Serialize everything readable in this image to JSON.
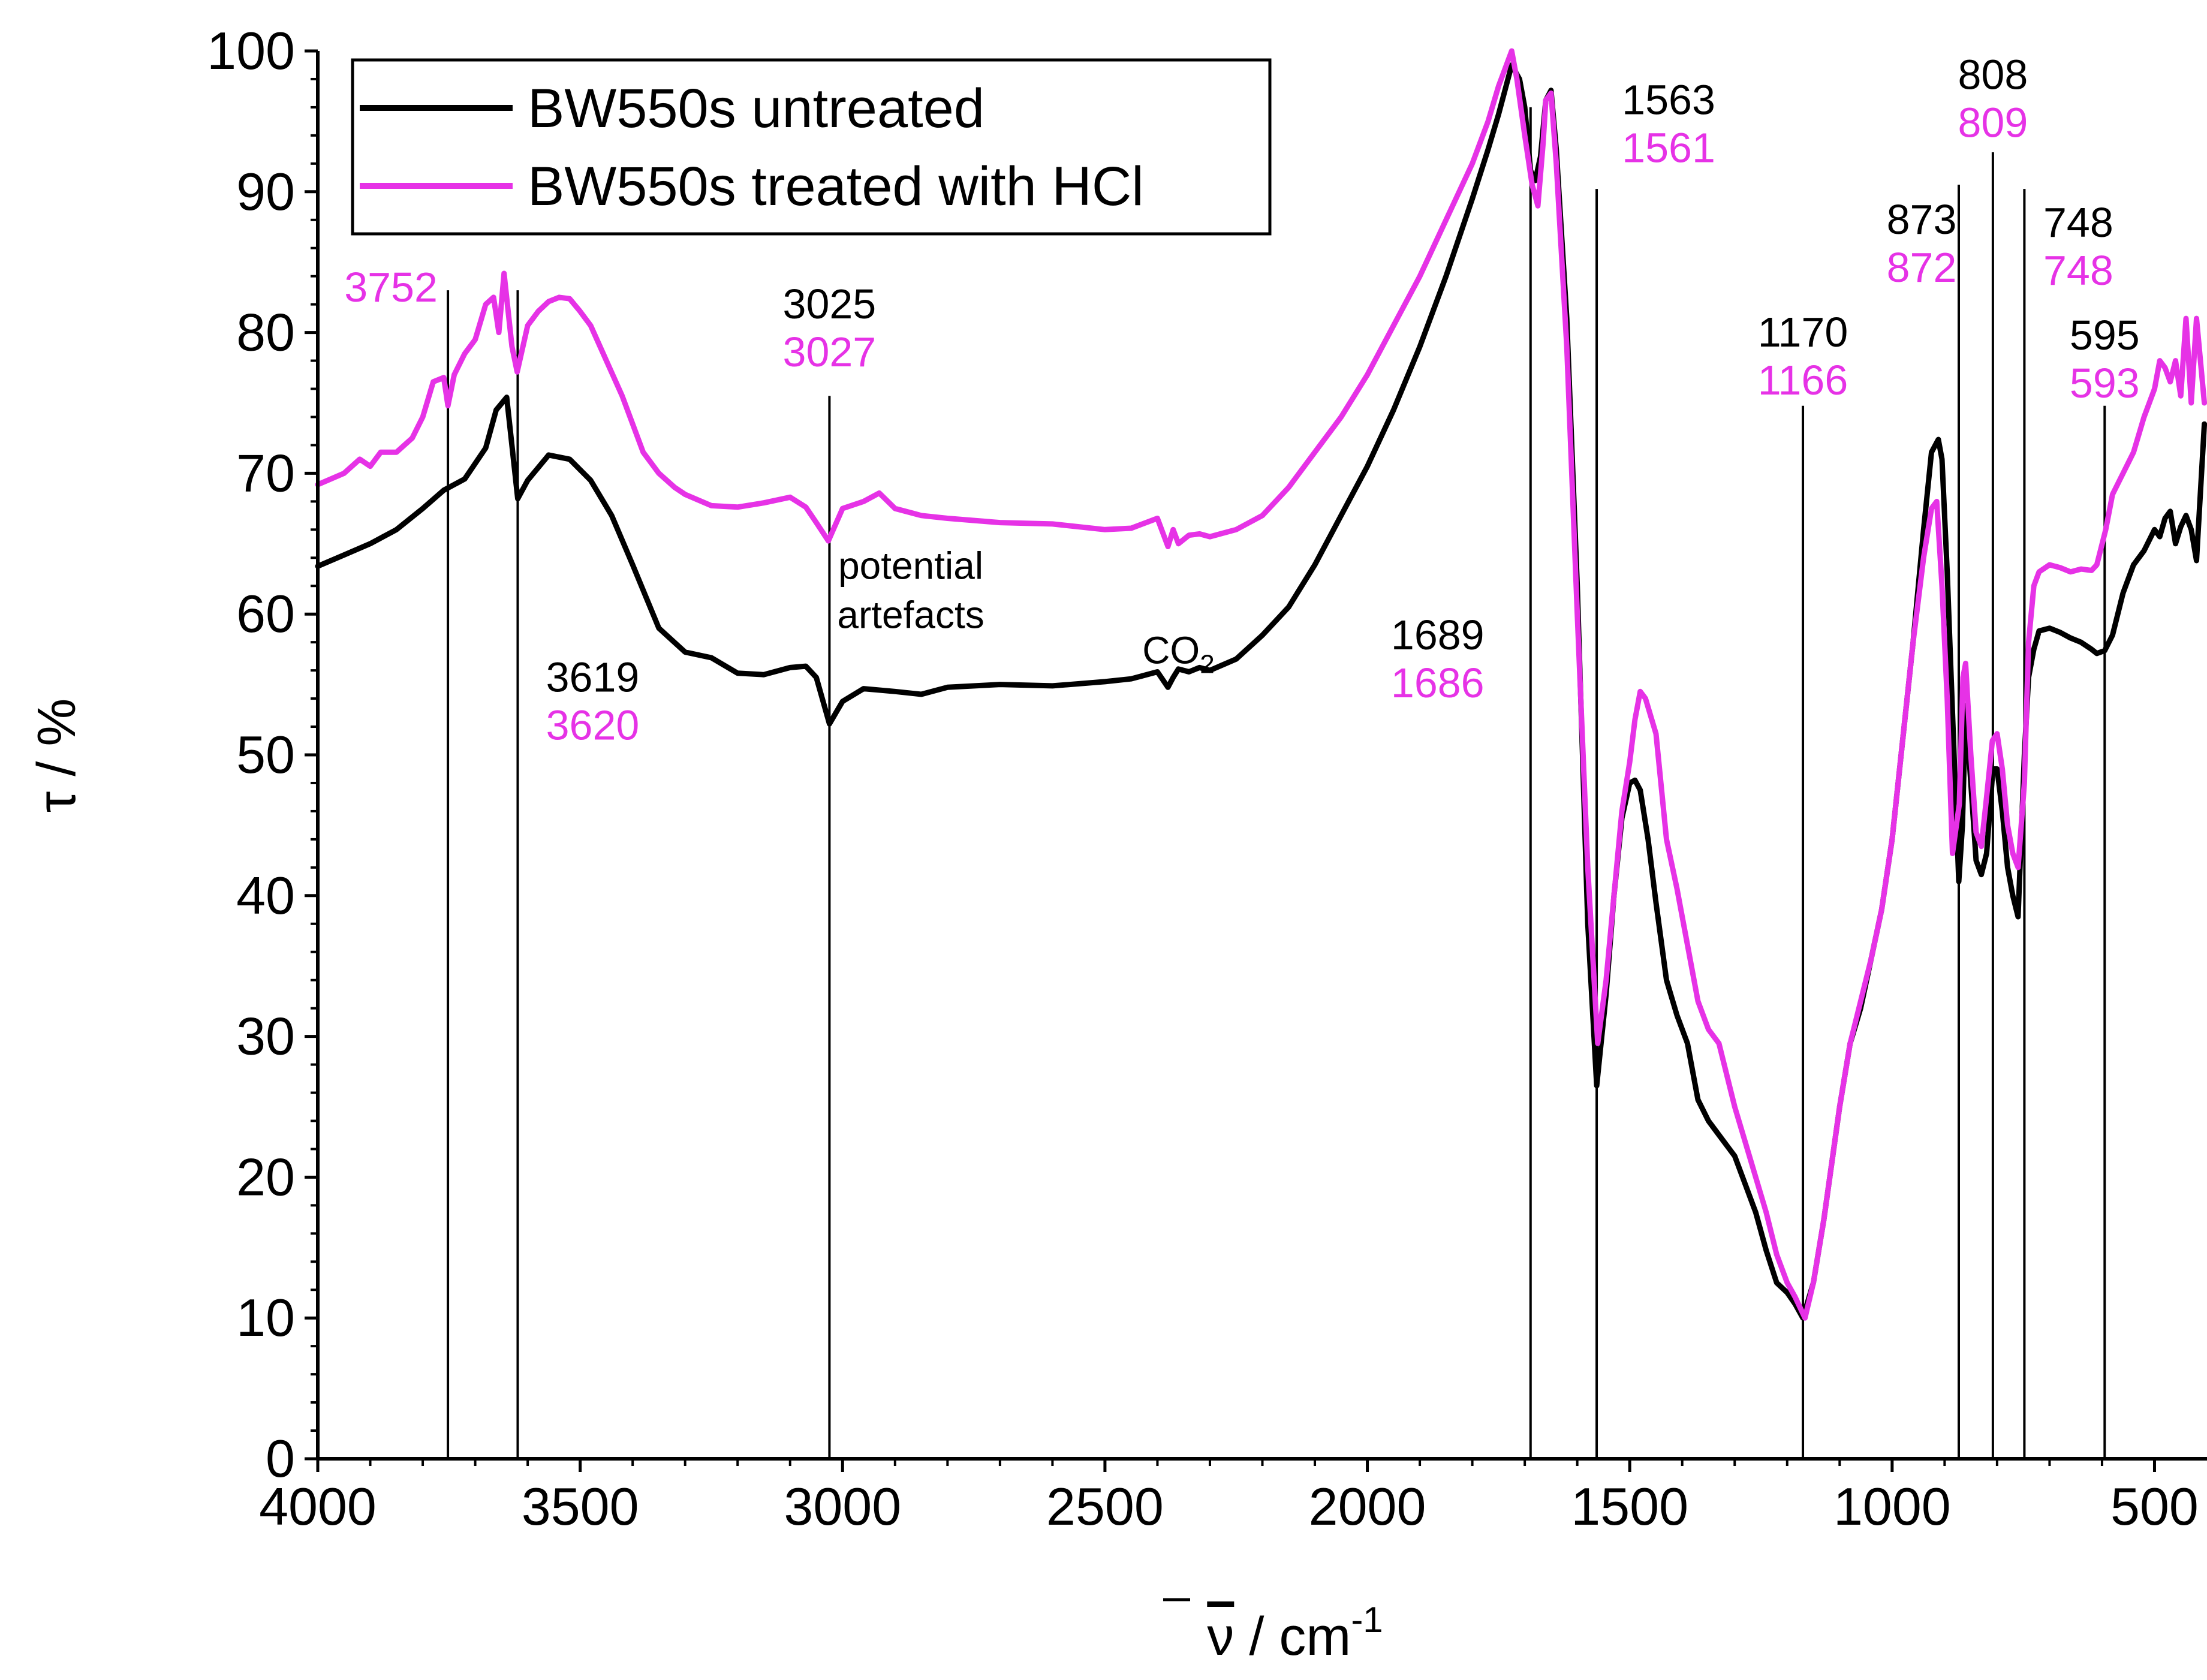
{
  "chart_data": {
    "type": "line",
    "title": "",
    "xlabel": "ν̄ / cm⁻¹",
    "xlabel_parts": {
      "symbol": "ν",
      "unit": " / cm",
      "exponent": "-1"
    },
    "ylabel": "τ / %",
    "xlim": [
      4000,
      400
    ],
    "x_reversed": true,
    "ylim": [
      0,
      100
    ],
    "x_ticks": [
      4000,
      3500,
      3000,
      2500,
      2000,
      1500,
      1000,
      500
    ],
    "y_ticks": [
      0,
      10,
      20,
      30,
      40,
      50,
      60,
      70,
      80,
      90,
      100
    ],
    "grid": false,
    "legend_position": "top-left",
    "series": [
      {
        "name": "BW550s untreated",
        "color": "#000000",
        "x": [
          4000,
          3950,
          3900,
          3850,
          3800,
          3760,
          3720,
          3680,
          3660,
          3640,
          3619,
          3600,
          3560,
          3520,
          3480,
          3440,
          3400,
          3350,
          3300,
          3250,
          3200,
          3150,
          3100,
          3070,
          3050,
          3025,
          3000,
          2960,
          2900,
          2850,
          2800,
          2700,
          2600,
          2500,
          2450,
          2400,
          2380,
          2370,
          2360,
          2340,
          2320,
          2300,
          2250,
          2200,
          2150,
          2100,
          2050,
          2000,
          1950,
          1900,
          1850,
          1800,
          1770,
          1750,
          1725,
          1710,
          1700,
          1689,
          1680,
          1670,
          1660,
          1650,
          1640,
          1620,
          1600,
          1580,
          1563,
          1545,
          1530,
          1515,
          1500,
          1490,
          1480,
          1465,
          1450,
          1430,
          1410,
          1390,
          1370,
          1350,
          1330,
          1300,
          1280,
          1260,
          1240,
          1220,
          1200,
          1185,
          1170,
          1150,
          1130,
          1100,
          1080,
          1060,
          1040,
          1020,
          1000,
          980,
          960,
          940,
          925,
          912,
          905,
          895,
          885,
          873,
          866,
          860,
          850,
          840,
          830,
          820,
          808,
          800,
          790,
          780,
          770,
          760,
          748,
          740,
          730,
          720,
          700,
          680,
          660,
          640,
          620,
          610,
          595,
          580,
          560,
          540,
          520,
          500,
          490,
          480,
          470,
          460,
          450,
          440,
          430,
          420,
          405
        ],
        "y": [
          63.4,
          64.2,
          65.0,
          66.0,
          67.5,
          68.8,
          69.6,
          71.8,
          74.5,
          75.4,
          68.2,
          69.5,
          71.3,
          71.0,
          69.5,
          67.0,
          63.5,
          59.0,
          57.3,
          56.9,
          55.8,
          55.7,
          56.2,
          56.3,
          55.5,
          52.2,
          53.8,
          54.7,
          54.5,
          54.3,
          54.8,
          55.0,
          54.9,
          55.2,
          55.4,
          55.9,
          54.8,
          55.5,
          56.1,
          55.9,
          56.2,
          56.0,
          56.8,
          58.5,
          60.5,
          63.5,
          67.0,
          70.5,
          74.5,
          79.0,
          84.0,
          89.5,
          93.0,
          95.5,
          99.0,
          98.0,
          96.0,
          91.5,
          90.8,
          92.5,
          96.5,
          97.2,
          93.0,
          81.0,
          62.0,
          38.0,
          26.5,
          33.0,
          40.0,
          45.5,
          48.0,
          48.2,
          47.5,
          44.0,
          39.5,
          34.0,
          31.5,
          29.5,
          25.5,
          24.0,
          23.0,
          21.5,
          19.5,
          17.5,
          14.8,
          12.5,
          11.8,
          11.0,
          10.0,
          12.5,
          17.0,
          25.0,
          29.5,
          32.0,
          35.5,
          39.0,
          44.0,
          51.0,
          58.0,
          66.0,
          71.5,
          72.4,
          71.0,
          63.0,
          53.0,
          41.0,
          45.0,
          53.5,
          48.0,
          42.5,
          41.5,
          43.0,
          49.0,
          49.0,
          46.0,
          42.0,
          40.0,
          38.5,
          50.0,
          55.5,
          57.5,
          58.8,
          59.0,
          58.7,
          58.3,
          58.0,
          57.5,
          57.2,
          57.4,
          58.5,
          61.5,
          63.5,
          64.5,
          66.0,
          65.5,
          66.8,
          67.3,
          65.0,
          66.2,
          67.0,
          66.0,
          63.8,
          73.5
        ]
      },
      {
        "name": "BW550s treated with HCl",
        "color": "#e632e6",
        "x": [
          4000,
          3950,
          3920,
          3900,
          3880,
          3850,
          3820,
          3800,
          3780,
          3760,
          3752,
          3740,
          3720,
          3700,
          3680,
          3665,
          3655,
          3645,
          3630,
          3620,
          3600,
          3580,
          3560,
          3540,
          3520,
          3500,
          3480,
          3450,
          3420,
          3400,
          3380,
          3350,
          3320,
          3300,
          3250,
          3200,
          3150,
          3100,
          3070,
          3050,
          3027,
          3000,
          2960,
          2930,
          2900,
          2850,
          2800,
          2700,
          2600,
          2500,
          2450,
          2400,
          2380,
          2370,
          2360,
          2340,
          2320,
          2300,
          2250,
          2200,
          2150,
          2100,
          2050,
          2000,
          1950,
          1900,
          1850,
          1800,
          1770,
          1750,
          1730,
          1725,
          1715,
          1700,
          1686,
          1675,
          1665,
          1660,
          1650,
          1640,
          1620,
          1600,
          1580,
          1561,
          1545,
          1530,
          1515,
          1500,
          1490,
          1480,
          1470,
          1450,
          1430,
          1410,
          1390,
          1370,
          1350,
          1330,
          1300,
          1280,
          1260,
          1240,
          1220,
          1200,
          1185,
          1166,
          1150,
          1130,
          1100,
          1080,
          1060,
          1040,
          1020,
          1000,
          980,
          960,
          940,
          925,
          915,
          905,
          895,
          885,
          872,
          865,
          860,
          850,
          840,
          830,
          820,
          809,
          800,
          790,
          780,
          770,
          760,
          748,
          740,
          730,
          720,
          700,
          680,
          660,
          640,
          620,
          610,
          593,
          580,
          560,
          540,
          520,
          500,
          490,
          480,
          470,
          460,
          450,
          440,
          430,
          420,
          405
        ],
        "y": [
          69.2,
          70.0,
          71.0,
          70.5,
          71.5,
          71.5,
          72.5,
          74.0,
          76.5,
          76.8,
          74.8,
          77.0,
          78.5,
          79.5,
          82.0,
          82.5,
          80.0,
          84.2,
          79.0,
          77.2,
          80.5,
          81.5,
          82.2,
          82.5,
          82.4,
          81.5,
          80.5,
          78.0,
          75.5,
          73.5,
          71.5,
          70.0,
          69.0,
          68.5,
          67.7,
          67.6,
          67.9,
          68.3,
          67.6,
          66.5,
          65.2,
          67.5,
          68.0,
          68.6,
          67.5,
          67.0,
          66.8,
          66.5,
          66.4,
          66.0,
          66.1,
          66.8,
          64.8,
          66.0,
          65.0,
          65.6,
          65.7,
          65.5,
          66.0,
          67.0,
          69.0,
          71.5,
          74.0,
          77.0,
          80.5,
          84.0,
          88.0,
          92.0,
          95.0,
          97.5,
          99.5,
          100.0,
          98.0,
          94.0,
          90.5,
          89.0,
          93.5,
          96.5,
          97.0,
          92.0,
          79.0,
          60.0,
          42.0,
          29.5,
          34.0,
          40.0,
          46.0,
          49.5,
          52.5,
          54.5,
          54.0,
          51.5,
          44.0,
          40.5,
          36.5,
          32.5,
          30.5,
          29.5,
          25.0,
          22.5,
          20.0,
          17.5,
          14.5,
          12.5,
          11.5,
          10.0,
          12.5,
          17.0,
          25.0,
          29.5,
          32.5,
          35.5,
          39.0,
          44.0,
          51.0,
          58.0,
          64.0,
          67.5,
          68.0,
          62.0,
          54.0,
          43.0,
          46.5,
          55.5,
          56.5,
          50.0,
          44.5,
          43.5,
          47.0,
          51.0,
          51.5,
          49.0,
          45.0,
          43.0,
          42.0,
          48.0,
          58.0,
          62.0,
          63.0,
          63.5,
          63.3,
          63.0,
          63.2,
          63.1,
          63.5,
          66.0,
          68.5,
          70.0,
          71.5,
          74.0,
          76.0,
          78.0,
          77.5,
          76.5,
          78.0,
          75.5,
          81.0,
          75.0,
          81.0,
          75.0
        ]
      }
    ],
    "peak_markers": [
      {
        "x": 3752,
        "line_top": 83,
        "labels": [
          {
            "text": "3752",
            "color": "#e632e6"
          }
        ]
      },
      {
        "x": 3619,
        "line_top": 83,
        "labels": [
          {
            "text": "3619",
            "color": "#000000"
          },
          {
            "text": "3620",
            "color": "#e632e6"
          }
        ]
      },
      {
        "x": 3025,
        "line_top": 75.5,
        "labels": [
          {
            "text": "3025",
            "color": "#000000"
          },
          {
            "text": "3027",
            "color": "#e632e6"
          }
        ]
      },
      {
        "x": 1689,
        "line_top": 96,
        "labels": [
          {
            "text": "1689",
            "color": "#000000"
          },
          {
            "text": "1686",
            "color": "#e632e6"
          }
        ]
      },
      {
        "x": 1563,
        "line_top": 90.2,
        "labels": [
          {
            "text": "1563",
            "color": "#000000"
          },
          {
            "text": "1561",
            "color": "#e632e6"
          }
        ]
      },
      {
        "x": 1170,
        "line_top": 74.8,
        "labels": [
          {
            "text": "1170",
            "color": "#000000"
          },
          {
            "text": "1166",
            "color": "#e632e6"
          }
        ]
      },
      {
        "x": 873,
        "line_top": 90.5,
        "labels": [
          {
            "text": "873",
            "color": "#000000"
          },
          {
            "text": "872",
            "color": "#e632e6"
          }
        ]
      },
      {
        "x": 808,
        "line_top": 92.8,
        "labels": [
          {
            "text": "808",
            "color": "#000000"
          },
          {
            "text": "809",
            "color": "#e632e6"
          }
        ]
      },
      {
        "x": 748,
        "line_top": 90.2,
        "labels": [
          {
            "text": "748",
            "color": "#000000"
          },
          {
            "text": "748",
            "color": "#e632e6"
          }
        ]
      },
      {
        "x": 595,
        "line_top": 74.8,
        "labels": [
          {
            "text": "595",
            "color": "#000000"
          },
          {
            "text": "593",
            "color": "#e632e6"
          }
        ]
      }
    ],
    "annotations": [
      {
        "text": "potential",
        "x": 2870,
        "y": 62.5
      },
      {
        "text": "artefacts",
        "x": 2870,
        "y": 59.0
      },
      {
        "text": "CO",
        "subscript": "2",
        "x": 2360,
        "y": 56.5
      }
    ]
  }
}
